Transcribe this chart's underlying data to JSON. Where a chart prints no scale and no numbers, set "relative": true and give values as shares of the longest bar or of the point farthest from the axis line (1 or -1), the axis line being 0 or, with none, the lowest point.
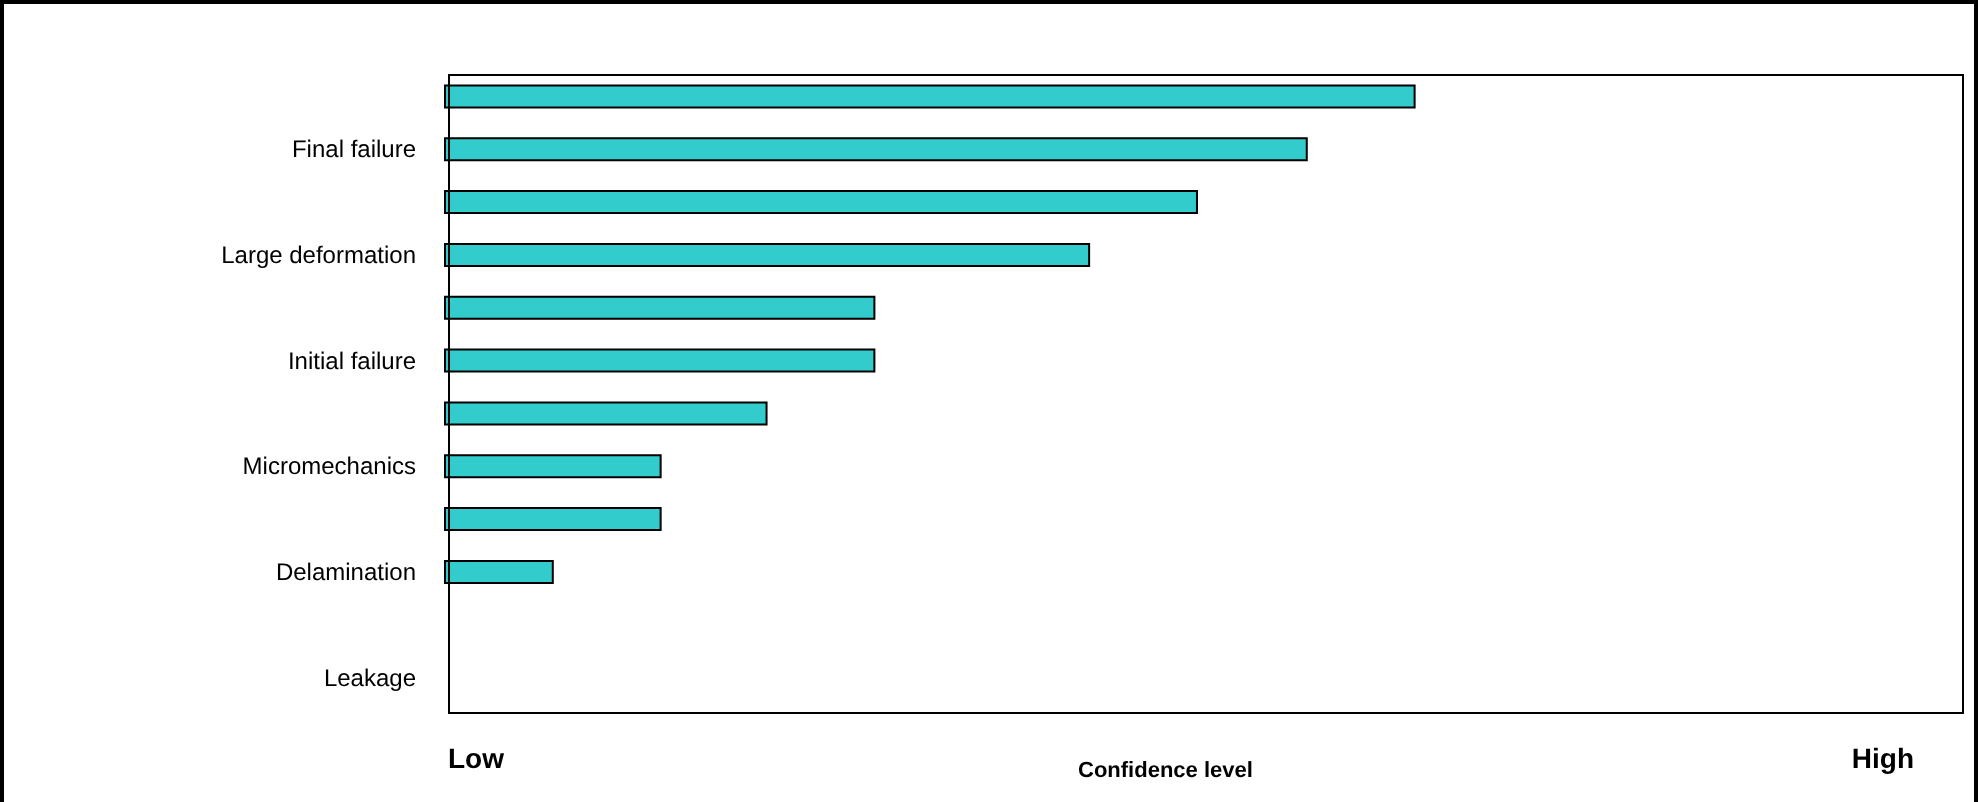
{
  "chart_data": {
    "type": "bar",
    "orientation": "horizontal",
    "relative": true,
    "xlabel": "Confidence level",
    "annotations": [
      "Low",
      "High"
    ],
    "categories": [
      null,
      "Final failure",
      null,
      "Large deformation",
      null,
      "Initial failure",
      null,
      "Micromechanics",
      null,
      "Delamination",
      null,
      "Leakage"
    ],
    "values": [
      1,
      0.889,
      0.776,
      0.665,
      0.444,
      0.444,
      0.333,
      0.224,
      0.224,
      0.113,
      null,
      null
    ],
    "color": "#33cccc"
  }
}
